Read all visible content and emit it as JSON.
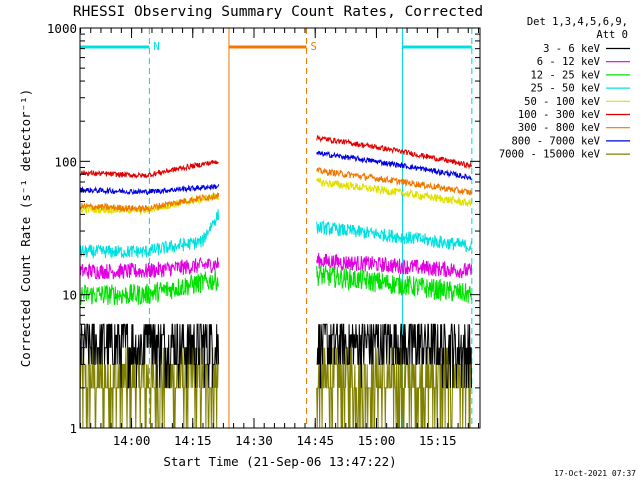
{
  "chart_data": {
    "type": "line",
    "title": "RHESSI Observing Summary Count Rates, Corrected",
    "xlabel": "Start Time (21-Sep-06 13:47:22)",
    "ylabel": "Corrected Count Rate (s⁻¹ detector⁻¹)",
    "ylog": true,
    "ylim": [
      1,
      1000
    ],
    "xlim_minutes_after_start": [
      0,
      98
    ],
    "y_ticks": [
      {
        "value": 1,
        "label": "1"
      },
      {
        "value": 10,
        "label": "10"
      },
      {
        "value": 100,
        "label": "100"
      },
      {
        "value": 1000,
        "label": "1000"
      }
    ],
    "x_ticks": [
      {
        "minute": 12.63,
        "label": "14:00"
      },
      {
        "minute": 27.63,
        "label": "14:15"
      },
      {
        "minute": 42.63,
        "label": "14:30"
      },
      {
        "minute": 57.63,
        "label": "14:45"
      },
      {
        "minute": 72.63,
        "label": "15:00"
      },
      {
        "minute": 87.63,
        "label": "15:15"
      }
    ],
    "legend": {
      "placement": "right",
      "header": [
        "Det 1,3,4,5,6,9,",
        "Att 0"
      ]
    },
    "data_gap_minutes": [
      35.5,
      57.5
    ],
    "segments": [
      {
        "label": "N",
        "color": "#00e0e0",
        "start": 0,
        "end": 17,
        "boundary_color": "#00d8d8"
      },
      {
        "label": "S",
        "color": "#f07800",
        "start": 36.5,
        "end": 55.5,
        "boundary_color": "#f07800"
      },
      {
        "label": "",
        "color": "#00e0e0",
        "start": 79,
        "end": 96,
        "boundary_color": "#00d8d8"
      }
    ],
    "series": [
      {
        "name": "3 - 6 keV",
        "color": "#000000",
        "seg1": [
          [
            0,
            4.2
          ],
          [
            16,
            4.2
          ],
          [
            17,
            8
          ],
          [
            18,
            4.2
          ],
          [
            34,
            4.2
          ]
        ],
        "seg2": [
          [
            58,
            4.2
          ],
          [
            78,
            4.5
          ],
          [
            96,
            3.8
          ]
        ],
        "noise": 0.25
      },
      {
        "name": "6 - 12 keV",
        "color": "#e000e0",
        "seg1": [
          [
            0,
            15
          ],
          [
            16,
            15
          ],
          [
            34,
            17
          ]
        ],
        "seg2": [
          [
            58,
            18
          ],
          [
            96,
            15
          ]
        ],
        "noise": 0.06
      },
      {
        "name": "12 - 25 keV",
        "color": "#00e000",
        "seg1": [
          [
            0,
            10
          ],
          [
            16,
            10
          ],
          [
            34,
            13
          ]
        ],
        "seg2": [
          [
            58,
            14
          ],
          [
            96,
            10
          ]
        ],
        "noise": 0.08
      },
      {
        "name": "25 - 50 keV",
        "color": "#00e0e0",
        "seg1": [
          [
            0,
            21
          ],
          [
            16,
            21
          ],
          [
            30,
            25
          ],
          [
            34,
            40
          ]
        ],
        "seg2": [
          [
            58,
            32
          ],
          [
            96,
            23
          ]
        ],
        "noise": 0.05
      },
      {
        "name": "50 - 100 keV",
        "color": "#e0e000",
        "seg1": [
          [
            0,
            44
          ],
          [
            16,
            43
          ],
          [
            34,
            55
          ]
        ],
        "seg2": [
          [
            58,
            70
          ],
          [
            96,
            48
          ]
        ],
        "noise": 0.03
      },
      {
        "name": "100 - 300 keV",
        "color": "#e00000",
        "seg1": [
          [
            0,
            82
          ],
          [
            16,
            78
          ],
          [
            34,
            100
          ]
        ],
        "seg2": [
          [
            58,
            150
          ],
          [
            96,
            92
          ]
        ],
        "noise": 0.02
      },
      {
        "name": "300 - 800 keV",
        "color": "#f07800",
        "seg1": [
          [
            0,
            46
          ],
          [
            16,
            44
          ],
          [
            34,
            56
          ]
        ],
        "seg2": [
          [
            58,
            85
          ],
          [
            96,
            58
          ]
        ],
        "noise": 0.025
      },
      {
        "name": "800 - 7000 keV",
        "color": "#0000e0",
        "seg1": [
          [
            0,
            61
          ],
          [
            16,
            59
          ],
          [
            34,
            65
          ]
        ],
        "seg2": [
          [
            58,
            115
          ],
          [
            96,
            75
          ]
        ],
        "noise": 0.02
      },
      {
        "name": "7000 - 15000 keV",
        "color": "#808000",
        "seg1": [
          [
            0,
            2.2
          ],
          [
            34,
            2.2
          ]
        ],
        "seg2": [
          [
            58,
            2.2
          ],
          [
            96,
            2.2
          ]
        ],
        "noise": 0.3
      }
    ]
  },
  "footer": {
    "timestamp": "17-Oct-2021 07:37"
  }
}
